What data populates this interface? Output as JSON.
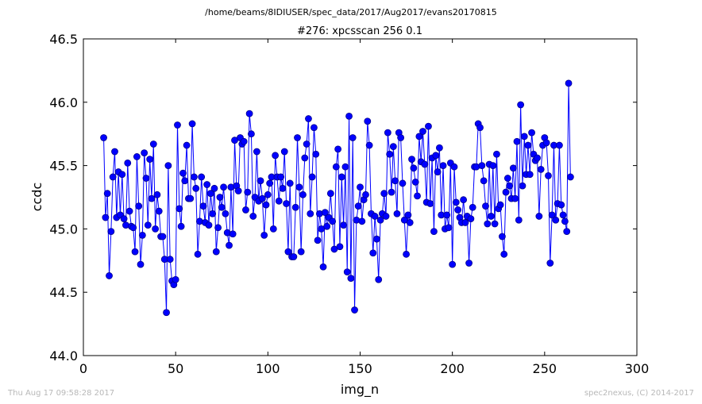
{
  "header": {
    "path": "/home/beams/8IDIUSER/spec_data/2017/Aug2017/evans20170815"
  },
  "footer": {
    "timestamp": "Thu Aug 17 09:58:28 2017",
    "credit": "spec2nexus, (C) 2014-2017"
  },
  "colors": {
    "line": "#0000ff",
    "marker_fill": "#0000ff",
    "marker_edge": "#00008b",
    "axes": "#000000"
  },
  "chart_data": {
    "type": "line",
    "title": "#276: xpcsscan 256 0.1",
    "xlabel": "img_n",
    "ylabel": "ccdc",
    "xlim": [
      0,
      300
    ],
    "ylim": [
      44.0,
      46.5
    ],
    "xticks": [
      0,
      50,
      100,
      150,
      200,
      250,
      300
    ],
    "xtick_labels": [
      "0",
      "50",
      "100",
      "150",
      "200",
      "250",
      "300"
    ],
    "yticks": [
      44.0,
      44.5,
      45.0,
      45.5,
      46.0,
      46.5
    ],
    "ytick_labels": [
      "44.0",
      "44.5",
      "45.0",
      "45.5",
      "46.0",
      "46.5"
    ],
    "grid": false,
    "marker": "circle",
    "series": [
      {
        "x_start": 11,
        "x_step": 1,
        "values": [
          45.72,
          45.09,
          45.28,
          44.63,
          44.98,
          45.41,
          45.61,
          45.09,
          45.45,
          45.11,
          45.43,
          45.08,
          45.03,
          45.52,
          45.14,
          45.02,
          45.01,
          44.82,
          45.57,
          45.18,
          44.72,
          44.95,
          45.6,
          45.4,
          45.03,
          45.55,
          45.24,
          45.67,
          45.0,
          45.27,
          45.14,
          44.94,
          44.94,
          44.76,
          44.34,
          45.5,
          44.76,
          44.59,
          44.56,
          44.6,
          45.82,
          45.16,
          45.02,
          45.44,
          45.38,
          45.66,
          45.24,
          45.24,
          45.83,
          45.41,
          45.32,
          44.8,
          45.06,
          45.41,
          45.18,
          45.05,
          45.35,
          45.03,
          45.28,
          45.12,
          45.32,
          44.82,
          45.01,
          45.25,
          45.17,
          45.33,
          45.12,
          44.97,
          44.87,
          45.33,
          44.96,
          45.7,
          45.34,
          45.3,
          45.72,
          45.67,
          45.69,
          45.15,
          45.29,
          45.91,
          45.75,
          45.1,
          45.25,
          45.61,
          45.22,
          45.38,
          45.24,
          44.95,
          45.19,
          45.27,
          45.36,
          45.41,
          45.0,
          45.58,
          45.41,
          45.22,
          45.41,
          45.32,
          45.61,
          45.2,
          44.82,
          45.36,
          44.78,
          44.78,
          45.17,
          45.72,
          45.33,
          44.82,
          45.27,
          45.56,
          45.67,
          45.87,
          45.12,
          45.41,
          45.8,
          45.59,
          44.91,
          45.12,
          45.0,
          44.7,
          45.13,
          45.02,
          45.09,
          45.28,
          45.06,
          44.84,
          45.49,
          45.63,
          44.86,
          45.41,
          45.03,
          45.49,
          44.66,
          45.89,
          44.61,
          45.72,
          44.36,
          45.07,
          45.18,
          45.33,
          45.06,
          45.23,
          45.27,
          45.85,
          45.66,
          45.12,
          44.81,
          45.1,
          44.92,
          44.6,
          45.07,
          45.12,
          45.28,
          45.1,
          45.76,
          45.59,
          45.29,
          45.65,
          45.38,
          45.12,
          45.76,
          45.72,
          45.36,
          45.07,
          44.8,
          45.11,
          45.05,
          45.55,
          45.48,
          45.37,
          45.26,
          45.73,
          45.53,
          45.77,
          45.51,
          45.21,
          45.81,
          45.2,
          45.56,
          44.98,
          45.58,
          45.45,
          45.64,
          45.11,
          45.5,
          45.0,
          45.11,
          45.01,
          45.52,
          44.72,
          45.49,
          45.21,
          45.15,
          45.09,
          45.05,
          45.23,
          45.05,
          45.1,
          44.73,
          45.08,
          45.17,
          45.49,
          45.49,
          45.83,
          45.8,
          45.5,
          45.38,
          45.18,
          45.04,
          45.51,
          45.1,
          45.5,
          45.04,
          45.59,
          45.16,
          45.19,
          44.94,
          44.8,
          45.29,
          45.4,
          45.34,
          45.24,
          45.48,
          45.24,
          45.69,
          45.07,
          45.98,
          45.34,
          45.73,
          45.43,
          45.66,
          45.43,
          45.76,
          45.59,
          45.54,
          45.56,
          45.1,
          45.47,
          45.66,
          45.72,
          45.68,
          45.42,
          44.73,
          45.11,
          45.66,
          45.07,
          45.2,
          45.66,
          45.19,
          45.11,
          45.06,
          44.98,
          46.15,
          45.41
        ]
      }
    ]
  }
}
